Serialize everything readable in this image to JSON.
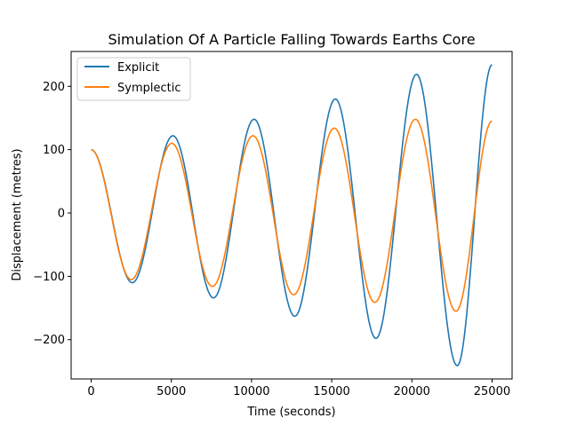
{
  "chart_data": {
    "type": "line",
    "title": "Simulation Of A Particle Falling Towards Earths Core",
    "xlabel": "Time (seconds)",
    "ylabel": "Displacement (metres)",
    "xlim": [
      -1250,
      26250
    ],
    "ylim": [
      -262,
      255
    ],
    "x_ticks": [
      0,
      5000,
      10000,
      15000,
      20000,
      25000
    ],
    "x_tick_labels": [
      "0",
      "5000",
      "10000",
      "15000",
      "20000",
      "25000"
    ],
    "y_ticks": [
      -200,
      -100,
      0,
      100,
      200
    ],
    "y_tick_labels": [
      "−200",
      "−100",
      "0",
      "100",
      "200"
    ],
    "grid": false,
    "legend_position": "top-left",
    "series": [
      {
        "name": "Explicit",
        "color": "#1f77b4",
        "points": [
          [
            0,
            100
          ],
          [
            2570,
            -110
          ],
          [
            5100,
            122
          ],
          [
            7630,
            -134
          ],
          [
            10160,
            148
          ],
          [
            12700,
            -163
          ],
          [
            15230,
            180
          ],
          [
            17760,
            -198
          ],
          [
            20290,
            219
          ],
          [
            22830,
            -241
          ],
          [
            25000,
            234
          ]
        ]
      },
      {
        "name": "Symplectic",
        "color": "#ff7f0e",
        "points": [
          [
            0,
            100
          ],
          [
            2500,
            -105
          ],
          [
            5030,
            110
          ],
          [
            7560,
            -116
          ],
          [
            10090,
            122
          ],
          [
            12630,
            -129
          ],
          [
            15160,
            134
          ],
          [
            17690,
            -141
          ],
          [
            20220,
            148
          ],
          [
            22750,
            -155
          ],
          [
            25000,
            145
          ]
        ]
      }
    ]
  }
}
